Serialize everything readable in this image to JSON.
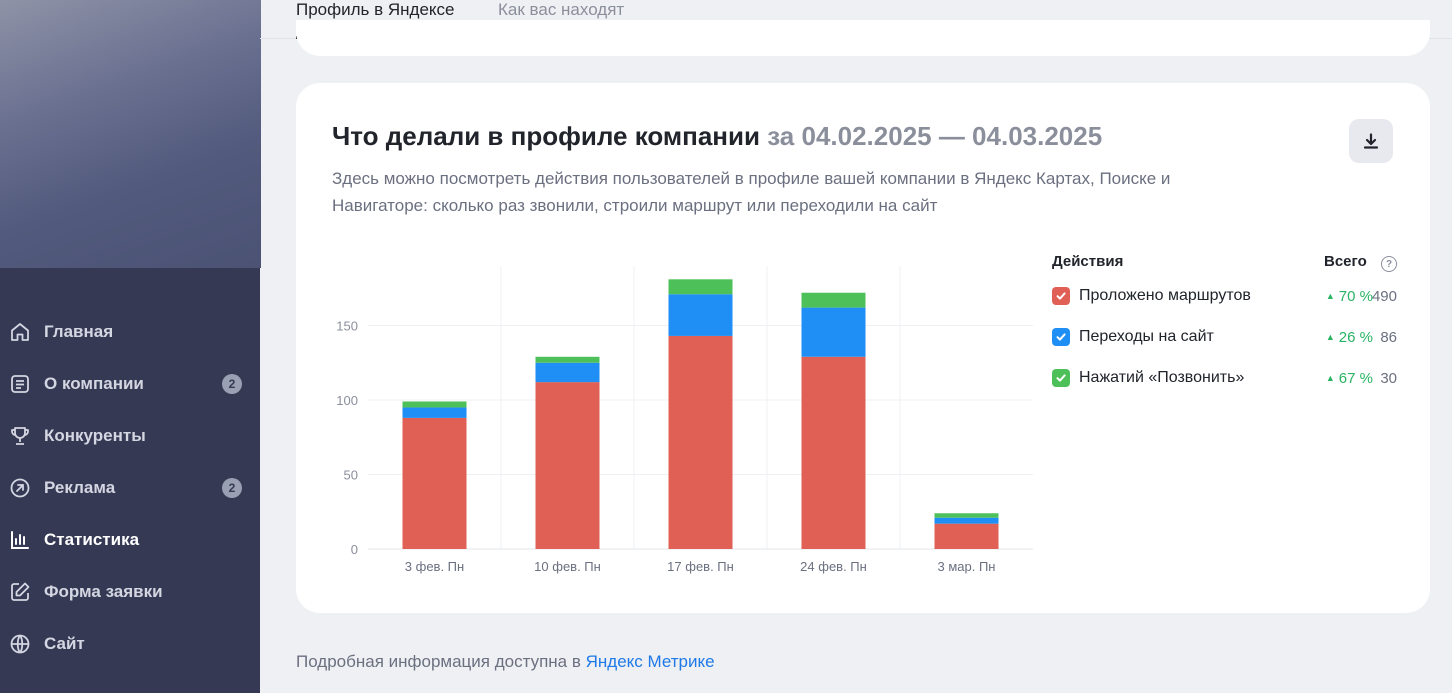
{
  "tabs": [
    {
      "label": "Профиль в Яндексе",
      "active": true
    },
    {
      "label": "Как вас находят",
      "active": false
    }
  ],
  "sidebar": {
    "items": [
      {
        "label": "Главная",
        "icon": "home-icon",
        "badge": null,
        "active": false
      },
      {
        "label": "О компании",
        "icon": "document-icon",
        "badge": "2",
        "active": false
      },
      {
        "label": "Конкуренты",
        "icon": "trophy-icon",
        "badge": null,
        "active": false
      },
      {
        "label": "Реклама",
        "icon": "arrow-circle-icon",
        "badge": "2",
        "active": false
      },
      {
        "label": "Статистика",
        "icon": "bar-chart-icon",
        "badge": null,
        "active": true
      },
      {
        "label": "Форма заявки",
        "icon": "edit-icon",
        "badge": null,
        "active": false
      },
      {
        "label": "Сайт",
        "icon": "globe-icon",
        "badge": null,
        "active": false
      }
    ]
  },
  "card": {
    "title": "Что делали в профиле компании",
    "period": "за 04.02.2025 — 04.03.2025",
    "description": "Здесь можно посмотреть действия пользователей в профиле вашей компании в Яндекс Картах, Поиске и Навигаторе: сколько раз звонили, строили маршрут или переходили на сайт",
    "download_icon": "download-icon"
  },
  "legend": {
    "header": "Действия",
    "total_label": "Всего",
    "help_icon": "question-icon",
    "items": [
      {
        "name": "Проложено маршрутов",
        "change": "70 %",
        "total": "490",
        "color": "#e06055"
      },
      {
        "name": "Переходы на сайт",
        "change": "26 %",
        "total": "86",
        "color": "#1f8ef5"
      },
      {
        "name": "Нажатий «Позвонить»",
        "change": "67 %",
        "total": "30",
        "color": "#4dc05a"
      }
    ]
  },
  "chart_data": {
    "type": "bar",
    "stacked": true,
    "categories": [
      "3 фев. Пн",
      "10 фев. Пн",
      "17 фев. Пн",
      "24 фев. Пн",
      "3 мар. Пн"
    ],
    "series": [
      {
        "name": "Проложено маршрутов",
        "color": "#e06055",
        "values": [
          88,
          112,
          143,
          129,
          17
        ]
      },
      {
        "name": "Переходы на сайт",
        "color": "#1f8ef5",
        "values": [
          7,
          13,
          28,
          33,
          4
        ]
      },
      {
        "name": "Нажатий «Позвонить»",
        "color": "#4dc05a",
        "values": [
          4,
          4,
          10,
          10,
          3
        ]
      }
    ],
    "yticks": [
      "0",
      "50",
      "100",
      "150"
    ],
    "ylim": [
      0,
      190
    ],
    "grid": true,
    "legend": "right"
  },
  "footer": {
    "text": "Подробная информация доступна в",
    "link": "Яндекс Метрике"
  }
}
